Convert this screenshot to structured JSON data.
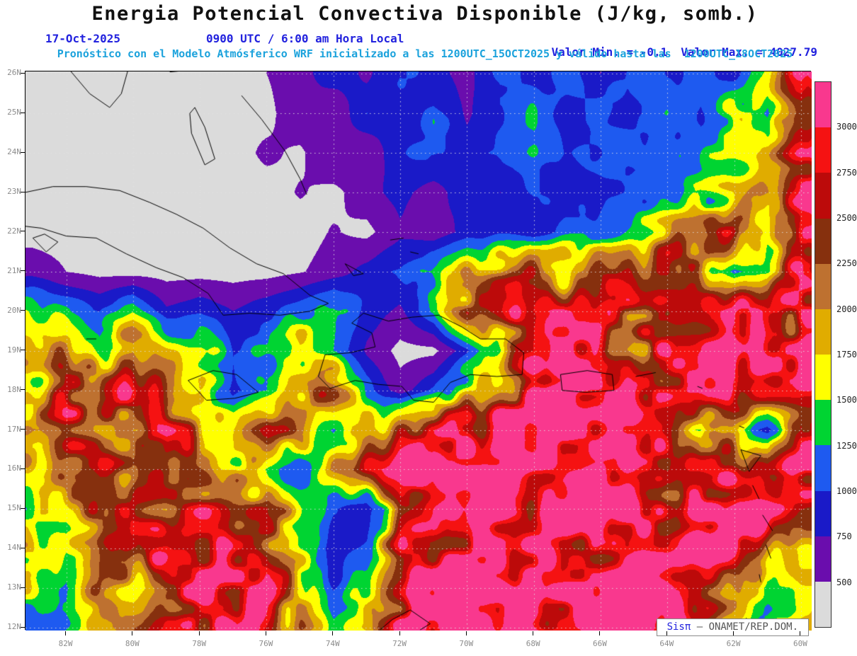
{
  "header": {
    "title": "Energia Potencial Convectiva Disponible (J/kg, somb.)",
    "date": "17-Oct-2025",
    "time": "0900 UTC / 6:00 am Hora Local",
    "min_label": "Valor Min. = -0.1",
    "max_label": "Valor Max. = 4027.79",
    "subtitle": "Pronóstico con el Modelo Atmósferico WRF inicializado a las 1200UTC_15OCT2025 y válido hasta las  1200UTC_18OCT2025"
  },
  "watermark": {
    "brand": "Sisπ",
    "text": " – ONAMET/REP.DOM."
  },
  "colors": {
    "accent_blue": "#2222DE",
    "accent_cyan": "#1BA2DC",
    "title_black": "#111111",
    "axis_gray": "#8C8C8C",
    "watermark_gray": "#555555",
    "land_outline": "#000000",
    "below_min_gray": "#DBDBDB"
  },
  "chart_data": {
    "type": "heatmap",
    "title": "Energia Potencial Convectiva Disponible",
    "units": "J/kg",
    "value_min": -0.1,
    "value_max": 4027.79,
    "grid_on": true,
    "legend_position": "right-colorbar",
    "lat_ticks": [
      "26N",
      "25N",
      "24N",
      "23N",
      "22N",
      "21N",
      "20N",
      "19N",
      "18N",
      "17N",
      "16N",
      "15N",
      "14N",
      "13N",
      "12N"
    ],
    "lon_ticks": [
      "82W",
      "80W",
      "78W",
      "76W",
      "74W",
      "72W",
      "70W",
      "68W",
      "66W",
      "64W",
      "62W",
      "60W"
    ],
    "levels": [
      500,
      750,
      1000,
      1250,
      1500,
      1750,
      2000,
      2250,
      2500,
      2750,
      3000
    ],
    "palette": [
      "#DBDBDB",
      "#6A0DAD",
      "#1A1AC8",
      "#1E5AF0",
      "#00D432",
      "#FFFF00",
      "#E0AC00",
      "#BE7130",
      "#86300E",
      "#BC0A0A",
      "#F51212",
      "#F9388E"
    ],
    "grid": {
      "lons": [
        -83,
        -82,
        -81,
        -80,
        -79,
        -78,
        -77,
        -76,
        -75,
        -74,
        -73,
        -72,
        -71,
        -70,
        -69,
        -68,
        -67,
        -66,
        -65,
        -64,
        -63,
        -62,
        -61,
        -60
      ],
      "lats": [
        26,
        25,
        24,
        23,
        22,
        21,
        20,
        19,
        18,
        17,
        16,
        15,
        14,
        13,
        12
      ],
      "values": [
        [
          400,
          400,
          400,
          400,
          400,
          430,
          400,
          500,
          650,
          900,
          700,
          1050,
          850,
          650,
          1100,
          850,
          1150,
          750,
          1200,
          950,
          1100,
          800,
          1600,
          3100
        ],
        [
          400,
          400,
          400,
          400,
          430,
          400,
          480,
          420,
          700,
          550,
          950,
          750,
          1100,
          700,
          1000,
          1200,
          800,
          1150,
          900,
          1250,
          1000,
          1700,
          1100,
          2600
        ],
        [
          400,
          400,
          400,
          400,
          400,
          450,
          400,
          550,
          450,
          750,
          550,
          950,
          1150,
          850,
          1050,
          1250,
          950,
          1150,
          1350,
          1050,
          1250,
          1450,
          1800,
          2800
        ],
        [
          400,
          400,
          400,
          400,
          400,
          400,
          430,
          400,
          520,
          430,
          650,
          850,
          600,
          950,
          750,
          1050,
          850,
          950,
          1150,
          1250,
          1350,
          1700,
          2300,
          2950
        ],
        [
          400,
          400,
          400,
          400,
          400,
          400,
          400,
          430,
          400,
          520,
          430,
          700,
          550,
          850,
          950,
          750,
          1050,
          1250,
          1550,
          1850,
          2250,
          2600,
          1600,
          3100
        ],
        [
          650,
          500,
          420,
          400,
          400,
          400,
          400,
          400,
          480,
          600,
          850,
          1050,
          1450,
          1850,
          2050,
          2250,
          2050,
          2450,
          2250,
          2650,
          2050,
          1050,
          1300,
          2900
        ],
        [
          1500,
          1250,
          1000,
          1400,
          800,
          950,
          750,
          950,
          1150,
          1500,
          900,
          700,
          1200,
          2300,
          2500,
          2850,
          2650,
          3050,
          2850,
          2450,
          2850,
          3050,
          2650,
          3200
        ],
        [
          2000,
          2400,
          1800,
          2600,
          2000,
          1600,
          1000,
          1400,
          1800,
          1300,
          700,
          420,
          430,
          900,
          1700,
          2600,
          3200,
          2800,
          2400,
          3000,
          2800,
          3200,
          2600,
          3000
        ],
        [
          1800,
          2600,
          2200,
          2800,
          2400,
          1800,
          900,
          1200,
          2000,
          2400,
          1100,
          600,
          1000,
          1800,
          2400,
          3000,
          3300,
          3100,
          2800,
          3200,
          3000,
          2800,
          3200,
          3000
        ],
        [
          2200,
          2800,
          2400,
          2000,
          2600,
          2200,
          1800,
          2400,
          2000,
          1400,
          1800,
          2200,
          2600,
          3200,
          3300,
          3200,
          3000,
          3300,
          3200,
          2600,
          1400,
          2000,
          1000,
          2400
        ],
        [
          1600,
          2000,
          2600,
          2200,
          2800,
          2400,
          2000,
          1600,
          1200,
          2000,
          2600,
          3000,
          3300,
          3200,
          3300,
          2800,
          3200,
          3300,
          3000,
          2400,
          2800,
          3200,
          2600,
          3000
        ],
        [
          1400,
          1800,
          2400,
          2800,
          2200,
          2600,
          2200,
          2600,
          1800,
          1000,
          800,
          2200,
          2800,
          3300,
          3200,
          2600,
          3300,
          3200,
          3300,
          2800,
          3200,
          3000,
          3300,
          2800
        ],
        [
          1800,
          1400,
          2000,
          2600,
          3000,
          2400,
          2800,
          2200,
          1600,
          800,
          1200,
          2600,
          3000,
          3300,
          3000,
          3300,
          3200,
          2800,
          3300,
          3000,
          3300,
          3200,
          2000,
          1400
        ],
        [
          1500,
          1200,
          2400,
          2000,
          2800,
          3200,
          2600,
          3000,
          2000,
          1000,
          1600,
          2800,
          3200,
          3300,
          3300,
          3000,
          3300,
          3200,
          3300,
          3200,
          2800,
          2200,
          1200,
          1600
        ],
        [
          1300,
          1600,
          2000,
          2600,
          3000,
          2800,
          3200,
          2600,
          2200,
          1400,
          2000,
          3000,
          3300,
          3200,
          3300,
          3300,
          3200,
          3300,
          3200,
          3300,
          2400,
          1600,
          1400,
          1800
        ]
      ]
    },
    "coastlines": [
      [
        [
          -81.9,
          26.1
        ],
        [
          -81.3,
          25.5
        ],
        [
          -80.7,
          25.15
        ],
        [
          -80.35,
          25.5
        ],
        [
          -80.15,
          26.1
        ]
      ],
      [
        [
          -78.9,
          26.05
        ],
        [
          -78.2,
          26.1
        ]
      ],
      [
        [
          -78.15,
          25.15
        ],
        [
          -77.85,
          24.65
        ],
        [
          -77.55,
          23.85
        ],
        [
          -77.85,
          23.7
        ],
        [
          -78.25,
          24.5
        ],
        [
          -78.3,
          25.0
        ],
        [
          -78.15,
          25.15
        ]
      ],
      [
        [
          -76.75,
          25.45
        ],
        [
          -76.15,
          24.85
        ],
        [
          -75.45,
          24.05
        ],
        [
          -75.0,
          23.35
        ],
        [
          -74.8,
          22.95
        ]
      ],
      [
        [
          -73.65,
          21.2
        ],
        [
          -73.1,
          20.95
        ],
        [
          -73.4,
          20.9
        ],
        [
          -73.65,
          21.2
        ]
      ],
      [
        [
          -72.3,
          21.8
        ],
        [
          -71.9,
          21.85
        ]
      ],
      [
        [
          -71.7,
          21.5
        ],
        [
          -71.45,
          21.45
        ]
      ],
      [
        [
          -83.25,
          23.0
        ],
        [
          -82.4,
          23.15
        ],
        [
          -81.4,
          23.15
        ],
        [
          -80.4,
          23.05
        ],
        [
          -79.5,
          22.75
        ],
        [
          -78.7,
          22.45
        ],
        [
          -77.9,
          22.1
        ],
        [
          -77.1,
          21.6
        ],
        [
          -76.3,
          21.2
        ],
        [
          -75.5,
          20.95
        ],
        [
          -74.7,
          20.4
        ],
        [
          -74.15,
          20.2
        ],
        [
          -74.7,
          20.0
        ],
        [
          -75.6,
          19.9
        ],
        [
          -76.5,
          19.95
        ],
        [
          -77.3,
          19.9
        ],
        [
          -77.75,
          20.45
        ],
        [
          -78.5,
          20.85
        ],
        [
          -79.3,
          21.1
        ],
        [
          -80.2,
          21.45
        ],
        [
          -81.1,
          21.85
        ],
        [
          -82.0,
          21.9
        ],
        [
          -82.75,
          22.1
        ],
        [
          -83.25,
          22.15
        ]
      ],
      [
        [
          -83.0,
          21.85
        ],
        [
          -82.6,
          21.5
        ],
        [
          -82.25,
          21.75
        ],
        [
          -82.65,
          21.95
        ],
        [
          -83.0,
          21.85
        ]
      ],
      [
        [
          -81.4,
          19.3
        ],
        [
          -81.1,
          19.3
        ]
      ],
      [
        [
          -78.35,
          18.25
        ],
        [
          -77.6,
          18.5
        ],
        [
          -76.9,
          18.4
        ],
        [
          -76.25,
          17.95
        ],
        [
          -76.95,
          17.8
        ],
        [
          -77.8,
          17.75
        ],
        [
          -78.35,
          18.25
        ]
      ],
      [
        [
          -74.45,
          18.35
        ],
        [
          -74.1,
          18.05
        ],
        [
          -73.35,
          18.25
        ],
        [
          -72.65,
          18.15
        ],
        [
          -71.95,
          18.1
        ],
        [
          -71.6,
          17.75
        ],
        [
          -71.0,
          17.7
        ],
        [
          -70.5,
          18.2
        ],
        [
          -69.9,
          18.4
        ],
        [
          -69.1,
          18.35
        ],
        [
          -68.35,
          18.4
        ],
        [
          -68.3,
          18.95
        ],
        [
          -68.85,
          19.3
        ],
        [
          -69.6,
          19.3
        ],
        [
          -70.15,
          19.6
        ],
        [
          -70.85,
          19.9
        ],
        [
          -71.65,
          19.85
        ],
        [
          -72.35,
          19.75
        ],
        [
          -73.1,
          19.95
        ],
        [
          -73.45,
          19.7
        ],
        [
          -72.85,
          19.45
        ],
        [
          -72.75,
          19.1
        ],
        [
          -73.5,
          18.95
        ],
        [
          -74.25,
          18.9
        ],
        [
          -74.45,
          18.35
        ]
      ],
      [
        [
          -67.2,
          18.4
        ],
        [
          -66.4,
          18.5
        ],
        [
          -65.65,
          18.4
        ],
        [
          -65.6,
          18.0
        ],
        [
          -66.45,
          17.95
        ],
        [
          -67.15,
          18.0
        ],
        [
          -67.2,
          18.4
        ]
      ],
      [
        [
          -64.95,
          18.35
        ],
        [
          -64.35,
          18.45
        ]
      ],
      [
        [
          -63.1,
          18.1
        ],
        [
          -62.95,
          18.05
        ]
      ],
      [
        [
          -61.85,
          17.1
        ],
        [
          -61.7,
          17.05
        ]
      ],
      [
        [
          -61.8,
          16.5
        ],
        [
          -61.2,
          16.35
        ],
        [
          -61.55,
          15.95
        ],
        [
          -61.8,
          16.5
        ]
      ],
      [
        [
          -61.45,
          15.6
        ],
        [
          -61.25,
          15.25
        ]
      ],
      [
        [
          -61.15,
          14.85
        ],
        [
          -60.85,
          14.45
        ]
      ],
      [
        [
          -61.05,
          14.1
        ],
        [
          -60.9,
          13.75
        ]
      ],
      [
        [
          -61.25,
          13.35
        ],
        [
          -61.2,
          13.15
        ]
      ],
      [
        [
          -61.65,
          12.25
        ],
        [
          -61.4,
          12.05
        ]
      ],
      [
        [
          -72.6,
          11.95
        ],
        [
          -72.25,
          12.2
        ],
        [
          -71.7,
          12.45
        ],
        [
          -71.1,
          12.1
        ],
        [
          -71.4,
          11.95
        ]
      ]
    ]
  }
}
